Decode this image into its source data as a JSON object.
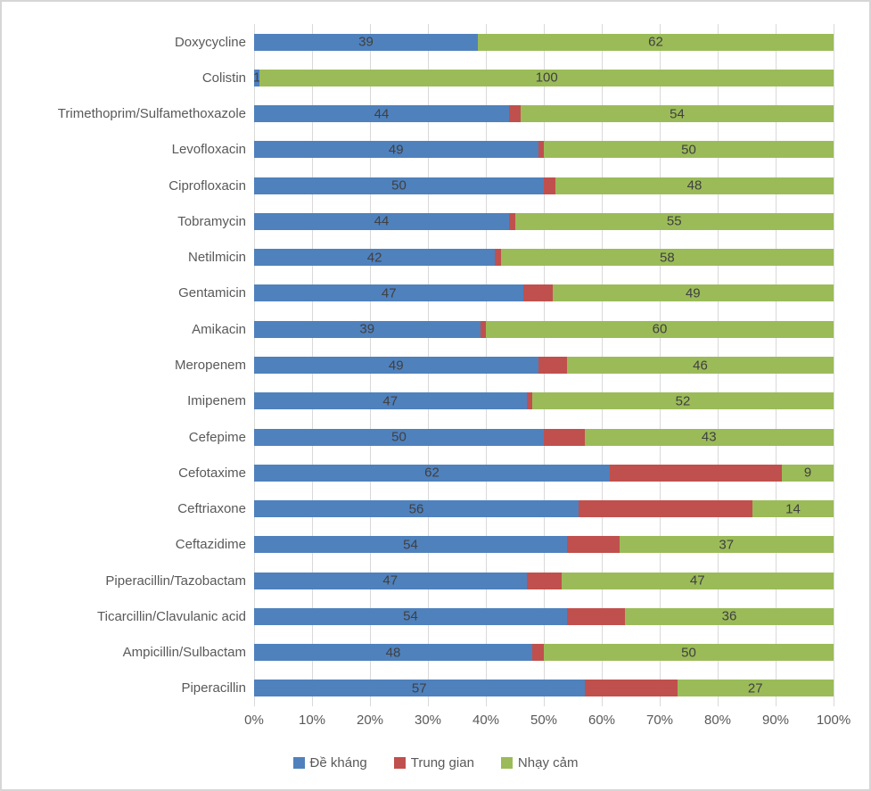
{
  "chart_data": {
    "type": "bar",
    "orientation": "horizontal",
    "stacking": "100-percent",
    "grid": "vertical-only",
    "legend_position": "bottom",
    "categories": [
      "Doxycycline",
      "Colistin",
      "Trimethoprim/Sulfamethoxazole",
      "Levofloxacin",
      "Ciprofloxacin",
      "Tobramycin",
      "Netilmicin",
      "Gentamicin",
      "Amikacin",
      "Meropenem",
      "Imipenem",
      "Cefepime",
      "Cefotaxime",
      "Ceftriaxone",
      "Ceftazidime",
      "Piperacillin/Tazobactam",
      "Ticarcillin/Clavulanic acid",
      "Ampicillin/Sulbactam",
      "Piperacillin"
    ],
    "series": [
      {
        "name": "Đề kháng",
        "color": "#4F81BD",
        "show_labels": true,
        "values": [
          39,
          1,
          44,
          49,
          50,
          44,
          42,
          47,
          39,
          49,
          47,
          50,
          62,
          56,
          54,
          47,
          54,
          48,
          57
        ]
      },
      {
        "name": "Trung gian",
        "color": "#C0504D",
        "show_labels": false,
        "values": [
          0,
          0,
          2,
          1,
          2,
          1,
          1,
          5,
          1,
          5,
          1,
          7,
          30,
          30,
          9,
          6,
          10,
          2,
          16
        ]
      },
      {
        "name": "Nhạy cảm",
        "color": "#9BBB59",
        "show_labels": true,
        "values": [
          62,
          100,
          54,
          50,
          48,
          55,
          58,
          49,
          60,
          46,
          52,
          43,
          9,
          14,
          37,
          47,
          36,
          50,
          27
        ]
      }
    ],
    "x_ticks": [
      "0%",
      "10%",
      "20%",
      "30%",
      "40%",
      "50%",
      "60%",
      "70%",
      "80%",
      "90%",
      "100%"
    ],
    "xlim": [
      0,
      100
    ],
    "title": "",
    "xlabel": "",
    "ylabel": ""
  },
  "colors": {
    "gridline": "#d9d9d9",
    "axis_text": "#595959",
    "data_label_text": "#404040",
    "chart_border": "#d6d6d6",
    "background": "#ffffff"
  }
}
